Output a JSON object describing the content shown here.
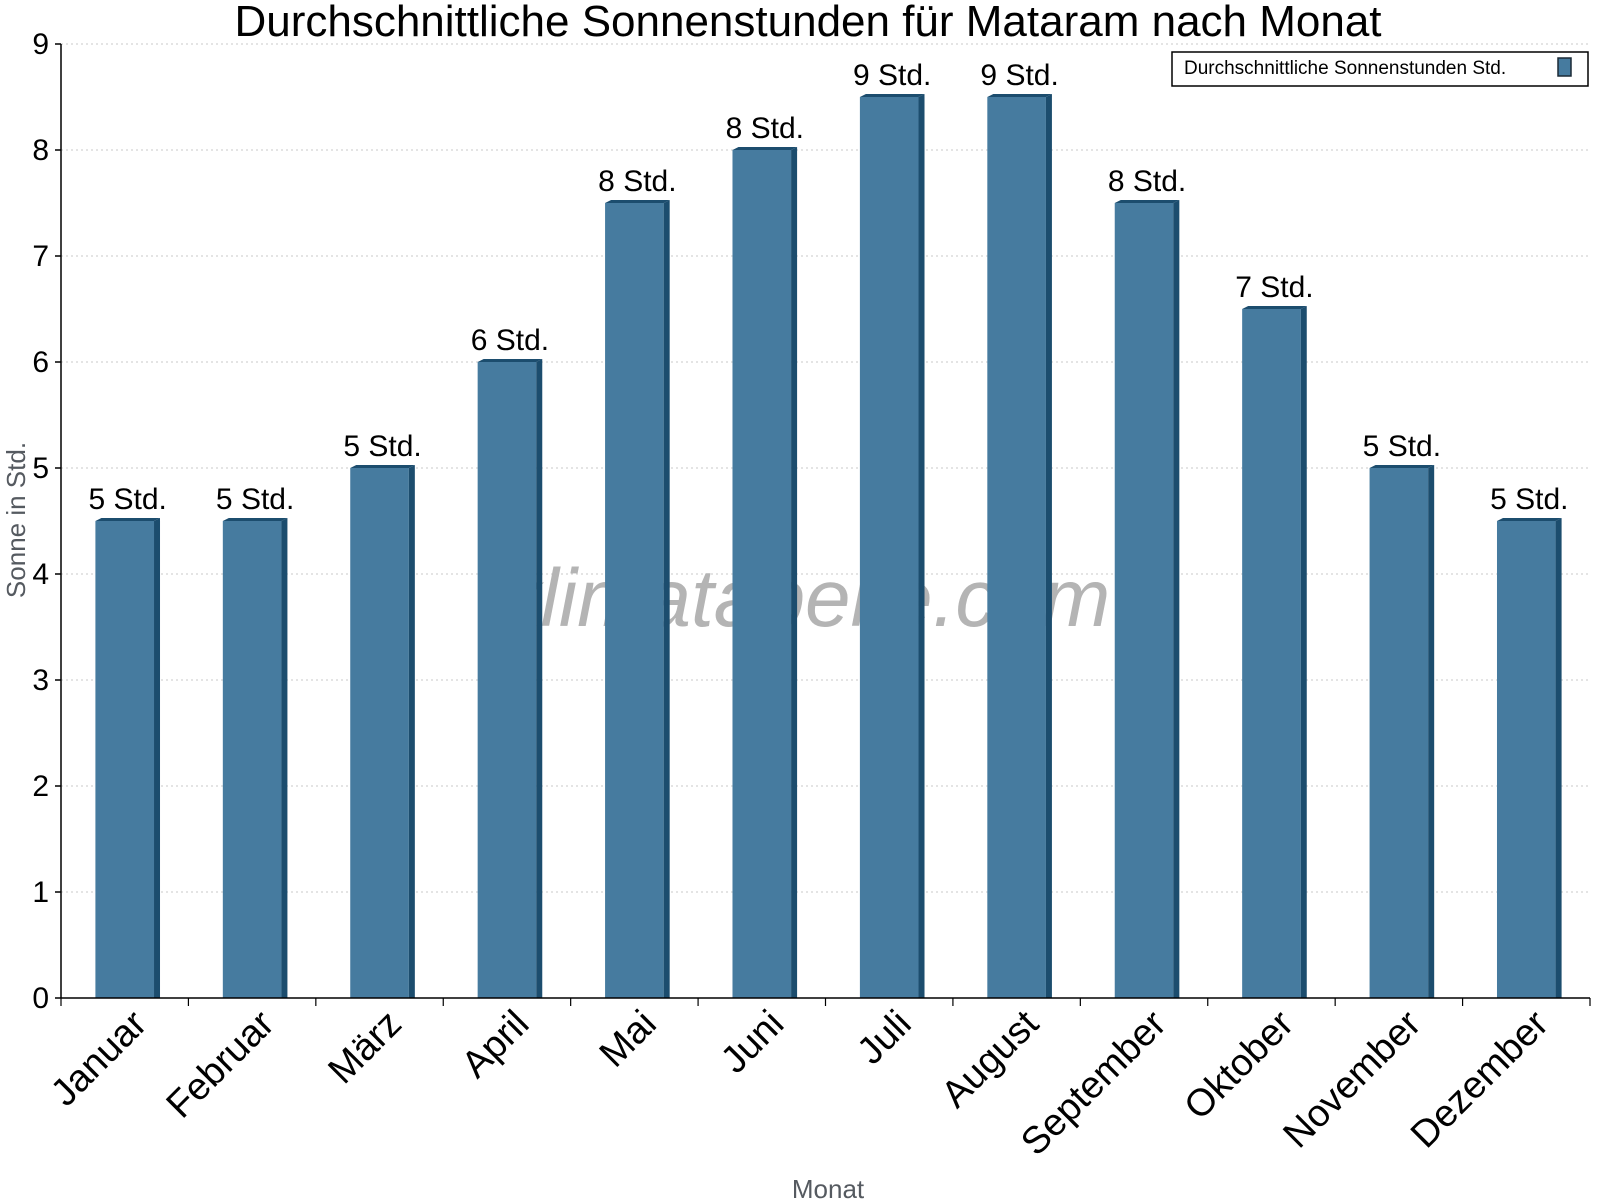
{
  "chart_data": {
    "type": "bar",
    "title": "Durchschnittliche Sonnenstunden für Mataram nach Monat",
    "xlabel": "Monat",
    "ylabel": "Sonne in Std.",
    "categories": [
      "Januar",
      "Februar",
      "März",
      "April",
      "Mai",
      "Juni",
      "Juli",
      "August",
      "September",
      "Oktober",
      "November",
      "Dezember"
    ],
    "series": [
      {
        "name": "Durchschnittliche Sonnenstunden Std.",
        "values": [
          4.5,
          4.5,
          5,
          6,
          7.5,
          8,
          8.5,
          8.5,
          7.5,
          6.5,
          5,
          4.5
        ],
        "labels": [
          "5 Std.",
          "5 Std.",
          "5 Std.",
          "6 Std.",
          "8 Std.",
          "8 Std.",
          "9 Std.",
          "9 Std.",
          "8 Std.",
          "7 Std.",
          "5 Std.",
          "5 Std."
        ],
        "color": "#467b9f",
        "side_color": "#1c4d6e"
      }
    ],
    "ylim": [
      0,
      9
    ],
    "yticks": [
      0,
      1,
      2,
      3,
      4,
      5,
      6,
      7,
      8,
      9
    ],
    "grid": true,
    "legend_position": "top-right"
  },
  "watermark": "klimatabelle.com"
}
